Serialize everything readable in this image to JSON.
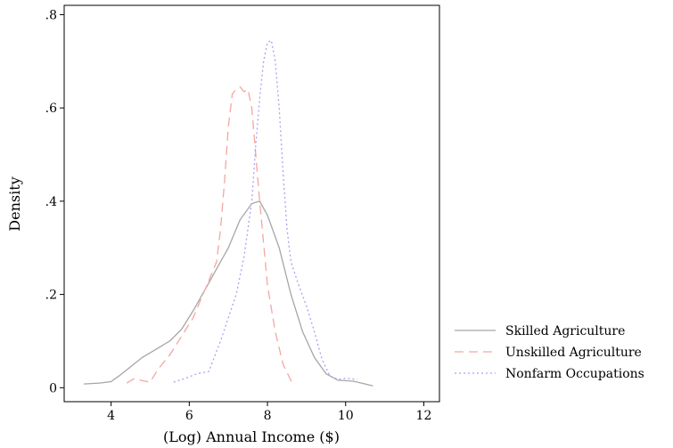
{
  "chart_data": {
    "type": "line",
    "title": "",
    "xlabel": "(Log) Annual Income ($)",
    "ylabel": "Density",
    "xlim": [
      2.8,
      12.4
    ],
    "ylim": [
      -0.03,
      0.82
    ],
    "xticks": [
      4,
      6,
      8,
      10,
      12
    ],
    "xtick_labels": [
      "4",
      "6",
      "8",
      "10",
      "12"
    ],
    "yticks": [
      0,
      0.2,
      0.4,
      0.6,
      0.8
    ],
    "ytick_labels": [
      "0",
      ".2",
      ".4",
      ".6",
      ".8"
    ],
    "grid": false,
    "legend_position": "right",
    "series": [
      {
        "name": "Skilled Agriculture",
        "color": "#a6a6a6",
        "dash": "solid",
        "x": [
          3.3,
          3.7,
          4.0,
          4.2,
          4.5,
          4.8,
          5.2,
          5.5,
          5.8,
          6.1,
          6.4,
          6.7,
          7.0,
          7.3,
          7.6,
          7.8,
          8.0,
          8.3,
          8.6,
          8.9,
          9.2,
          9.5,
          9.8,
          10.2,
          10.5,
          10.7
        ],
        "y": [
          0.008,
          0.01,
          0.013,
          0.025,
          0.045,
          0.065,
          0.085,
          0.1,
          0.125,
          0.165,
          0.21,
          0.255,
          0.3,
          0.36,
          0.395,
          0.4,
          0.37,
          0.3,
          0.2,
          0.12,
          0.065,
          0.03,
          0.016,
          0.014,
          0.008,
          0.004
        ]
      },
      {
        "name": "Unskilled Agriculture",
        "color": "#f4a6a0",
        "dash": "dashed",
        "x": [
          4.4,
          4.6,
          4.8,
          5.0,
          5.2,
          5.5,
          5.8,
          6.1,
          6.3,
          6.5,
          6.7,
          6.8,
          6.9,
          7.0,
          7.1,
          7.2,
          7.3,
          7.4,
          7.5,
          7.6,
          7.7,
          7.8,
          7.9,
          8.0,
          8.2,
          8.4,
          8.6,
          8.7
        ],
        "y": [
          0.01,
          0.02,
          0.015,
          0.012,
          0.04,
          0.07,
          0.11,
          0.15,
          0.19,
          0.23,
          0.27,
          0.34,
          0.44,
          0.56,
          0.63,
          0.64,
          0.645,
          0.635,
          0.64,
          0.6,
          0.5,
          0.4,
          0.31,
          0.22,
          0.12,
          0.05,
          0.015,
          0.005
        ]
      },
      {
        "name": "Nonfarm Occupations",
        "color": "#a3a3f5",
        "dash": "dotted",
        "x": [
          5.6,
          5.9,
          6.2,
          6.5,
          6.8,
          7.0,
          7.2,
          7.4,
          7.6,
          7.7,
          7.8,
          7.9,
          8.0,
          8.1,
          8.2,
          8.3,
          8.4,
          8.5,
          8.6,
          8.8,
          9.0,
          9.2,
          9.4,
          9.6,
          9.8,
          10.0,
          10.3
        ],
        "y": [
          0.012,
          0.02,
          0.03,
          0.035,
          0.1,
          0.15,
          0.2,
          0.28,
          0.4,
          0.52,
          0.62,
          0.7,
          0.74,
          0.745,
          0.7,
          0.6,
          0.46,
          0.34,
          0.27,
          0.22,
          0.175,
          0.12,
          0.06,
          0.025,
          0.018,
          0.02,
          0.018
        ]
      }
    ]
  }
}
